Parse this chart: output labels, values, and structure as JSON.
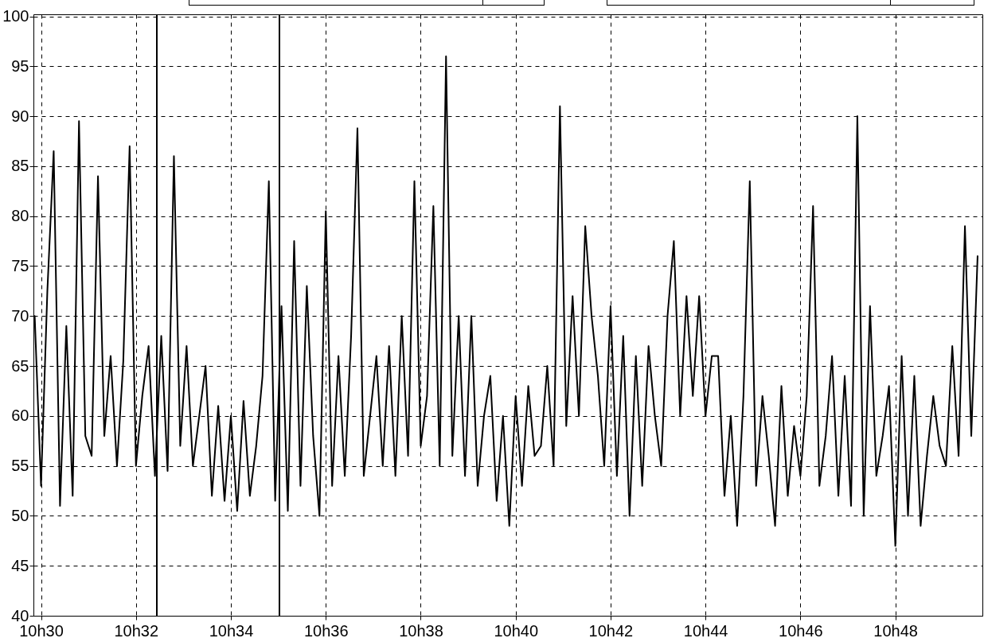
{
  "chart_data": {
    "type": "line",
    "categories": [
      null,
      "10h30",
      null,
      null,
      null,
      null,
      null,
      null,
      null,
      null,
      null,
      null,
      null,
      null,
      null,
      null,
      "10h32",
      null,
      null,
      null,
      null,
      null,
      null,
      null,
      null,
      null,
      null,
      null,
      null,
      null,
      null,
      "10h34",
      null,
      null,
      null,
      null,
      null,
      null,
      null,
      null,
      null,
      null,
      null,
      null,
      null,
      null,
      "10h36",
      null,
      null,
      null,
      null,
      null,
      null,
      null,
      null,
      null,
      null,
      null,
      null,
      null,
      null,
      "10h38",
      null,
      null,
      null,
      null,
      null,
      null,
      null,
      null,
      null,
      null,
      null,
      null,
      null,
      null,
      "10h40",
      null,
      null,
      null,
      null,
      null,
      null,
      null,
      null,
      null,
      null,
      null,
      null,
      null,
      null,
      "10h42",
      null,
      null,
      null,
      null,
      null,
      null,
      null,
      null,
      null,
      null,
      null,
      null,
      null,
      null,
      "10h44",
      null,
      null,
      null,
      null,
      null,
      null,
      null,
      null,
      null,
      null,
      null,
      null,
      null,
      null,
      "10h46",
      null,
      null,
      null,
      null,
      null,
      null,
      null,
      null,
      null,
      null,
      null,
      null,
      null,
      null,
      "10h48",
      null,
      null,
      null,
      null,
      null,
      null,
      null,
      null,
      null,
      null,
      null,
      null,
      null
    ],
    "series": [
      {
        "color": "#000000",
        "values": [
          70,
          53,
          72.5,
          86.5,
          51,
          69,
          52,
          89.5,
          58,
          56,
          84,
          58,
          66,
          55,
          65.5,
          87,
          55,
          62,
          67,
          54,
          68,
          54.5,
          86,
          57,
          67,
          55,
          60,
          65,
          52,
          61,
          51.5,
          60,
          50.5,
          61.5,
          52,
          57,
          64,
          83.5,
          51.5,
          71,
          50.5,
          77.5,
          53,
          73,
          58,
          50,
          80.5,
          53,
          66,
          54,
          68,
          88.8,
          54,
          60,
          66,
          55,
          67,
          54,
          70,
          56,
          83.5,
          57,
          62,
          81,
          55,
          96,
          56,
          70,
          54,
          70,
          53,
          60,
          64,
          51.5,
          60,
          49,
          62,
          53,
          63,
          56,
          57,
          65,
          55,
          91,
          59,
          72,
          60,
          79,
          70,
          64,
          55,
          71,
          54,
          68,
          50,
          66,
          53,
          67,
          60,
          55,
          70,
          77.5,
          60,
          72,
          62,
          72,
          60,
          66,
          66,
          52,
          60,
          49,
          62,
          83.5,
          53,
          62,
          56,
          49,
          63,
          52,
          59,
          54,
          62,
          81,
          53,
          58,
          66,
          52,
          64,
          51,
          90,
          50,
          71,
          54,
          58,
          63,
          47,
          66,
          50,
          64,
          49,
          56,
          62,
          57,
          55,
          67,
          56,
          79,
          58,
          76
        ]
      }
    ],
    "ylim": [
      40,
      100.2
    ],
    "yticks": [
      40,
      45,
      50,
      55,
      60,
      65,
      70,
      75,
      80,
      85,
      90,
      95,
      100
    ],
    "grid": true,
    "marker": "none",
    "line_style": "solid"
  }
}
